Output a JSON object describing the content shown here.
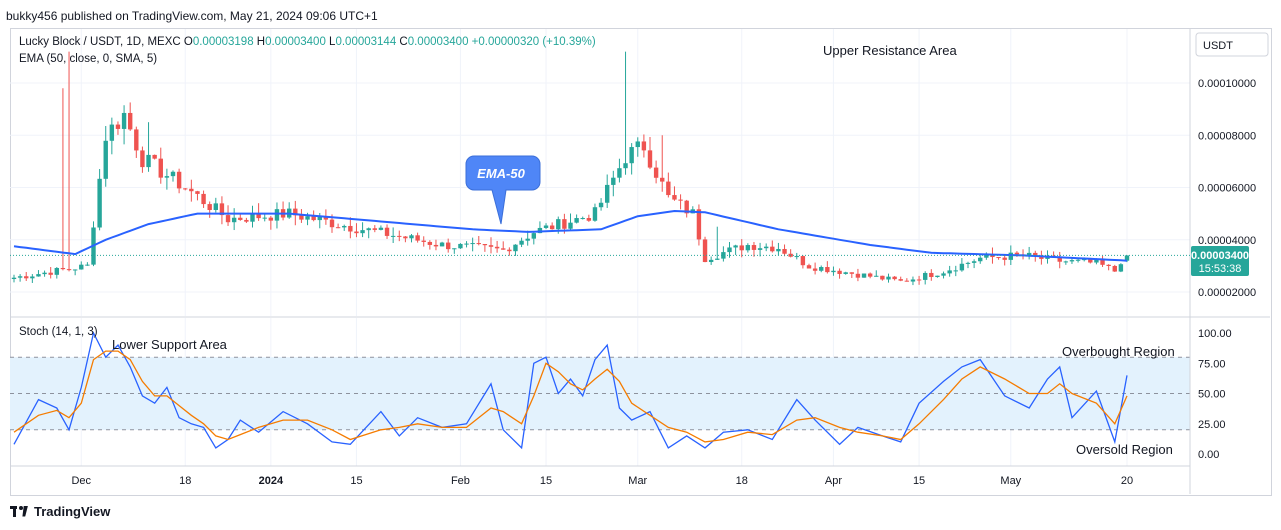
{
  "header": {
    "publisher": "bukky456 published on TradingView.com, May 21, 2024 09:06 UTC+1"
  },
  "footer": {
    "brand": "TradingView"
  },
  "legend": {
    "symbol": "Lucky Block / USDT, 1D, MEXC",
    "ohlc": [
      {
        "label": "O",
        "value": "0.00003198"
      },
      {
        "label": "H",
        "value": "0.00003400"
      },
      {
        "label": "L",
        "value": "0.00003144"
      },
      {
        "label": "C",
        "value": "0.00003400"
      }
    ],
    "change": "+0.00000320 (+10.39%)",
    "ema_label": "EMA (50, close, 0, SMA, 5)",
    "stoch_label": "Stoch (14, 1, 3)"
  },
  "currency_button": "USDT",
  "price_tag": {
    "price": "0.00003400",
    "countdown": "15:53:38"
  },
  "annotations": {
    "upper_resistance": "Upper Resistance Area",
    "lower_support": "Lower Support Area",
    "ema_callout": "EMA-50",
    "overbought": "Overbought Region",
    "oversold": "Oversold Region"
  },
  "colors": {
    "up": "#26a69a",
    "down": "#ef5350",
    "ema": "#2962ff",
    "stoch_k": "#2962ff",
    "stoch_d": "#f57c00",
    "band": "#e3f2fd",
    "callout": "#4f86f7"
  },
  "chart_data": [
    {
      "type": "candlestick",
      "title": "Lucky Block / USDT, 1D, MEXC",
      "y_ticks": [
        "0.00010000",
        "0.00008000",
        "0.00006000",
        "0.00004000",
        "0.00002000"
      ],
      "ylim": [
        1e-05,
        0.00011
      ],
      "x_tick_labels": [
        "Dec",
        "18",
        "2024",
        "15",
        "Feb",
        "15",
        "Mar",
        "18",
        "Apr",
        "15",
        "May",
        "20"
      ],
      "x_ticks_day_index": [
        11,
        28,
        42,
        56,
        73,
        87,
        102,
        119,
        134,
        148,
        163,
        182
      ],
      "last_close": 3.4e-05,
      "key_closes": [
        [
          0,
          2.55e-05
        ],
        [
          12,
          3e-05
        ],
        [
          15,
          8e-05
        ],
        [
          18,
          8.8e-05
        ],
        [
          21,
          7.1e-05
        ],
        [
          28,
          6e-05
        ],
        [
          35,
          4.8e-05
        ],
        [
          45,
          5e-05
        ],
        [
          55,
          4.5e-05
        ],
        [
          70,
          3.8e-05
        ],
        [
          80,
          3.6e-05
        ],
        [
          85,
          4.3e-05
        ],
        [
          95,
          5e-05
        ],
        [
          100,
          7.2e-05
        ],
        [
          103,
          7.6e-05
        ],
        [
          107,
          5.6e-05
        ],
        [
          111,
          5e-05
        ],
        [
          113,
          3.3e-05
        ],
        [
          120,
          3.8e-05
        ],
        [
          125,
          3.7e-05
        ],
        [
          130,
          3e-05
        ],
        [
          140,
          2.6e-05
        ],
        [
          145,
          2.4e-05
        ],
        [
          152,
          2.8e-05
        ],
        [
          158,
          3.3e-05
        ],
        [
          165,
          3.4e-05
        ],
        [
          170,
          3.2e-05
        ],
        [
          177,
          3.1e-05
        ],
        [
          180,
          2.8e-05
        ],
        [
          181,
          3.2e-05
        ],
        [
          182,
          3.4e-05
        ]
      ],
      "ema50": [
        [
          0,
          3.75e-05
        ],
        [
          10,
          3.45e-05
        ],
        [
          15,
          4e-05
        ],
        [
          22,
          4.6e-05
        ],
        [
          30,
          5e-05
        ],
        [
          45,
          5e-05
        ],
        [
          60,
          4.7e-05
        ],
        [
          75,
          4.4e-05
        ],
        [
          84,
          4.3e-05
        ],
        [
          96,
          4.4e-05
        ],
        [
          102,
          4.9e-05
        ],
        [
          108,
          5.1e-05
        ],
        [
          113,
          5.05e-05
        ],
        [
          125,
          4.4e-05
        ],
        [
          140,
          3.8e-05
        ],
        [
          150,
          3.5e-05
        ],
        [
          165,
          3.4e-05
        ],
        [
          182,
          3.2e-05
        ]
      ]
    },
    {
      "type": "line",
      "title": "Stoch (14, 1, 3)",
      "y_ticks": [
        "100.00",
        "75.00",
        "50.00",
        "25.00",
        "0.00"
      ],
      "ylim": [
        0,
        100
      ],
      "overbought": 80,
      "oversold": 20,
      "series": [
        {
          "name": "%K",
          "points": [
            [
              0,
              8
            ],
            [
              4,
              45
            ],
            [
              7,
              38
            ],
            [
              9,
              20
            ],
            [
              11,
              55
            ],
            [
              13,
              100
            ],
            [
              15,
              80
            ],
            [
              17,
              90
            ],
            [
              19,
              72
            ],
            [
              21,
              48
            ],
            [
              23,
              42
            ],
            [
              25,
              55
            ],
            [
              27,
              30
            ],
            [
              29,
              25
            ],
            [
              31,
              22
            ],
            [
              33,
              5
            ],
            [
              35,
              12
            ],
            [
              37,
              28
            ],
            [
              40,
              18
            ],
            [
              44,
              35
            ],
            [
              48,
              25
            ],
            [
              52,
              10
            ],
            [
              55,
              8
            ],
            [
              60,
              35
            ],
            [
              63,
              15
            ],
            [
              66,
              30
            ],
            [
              70,
              22
            ],
            [
              74,
              25
            ],
            [
              78,
              58
            ],
            [
              80,
              20
            ],
            [
              83,
              5
            ],
            [
              85,
              75
            ],
            [
              87,
              80
            ],
            [
              89,
              50
            ],
            [
              91,
              62
            ],
            [
              93,
              48
            ],
            [
              95,
              78
            ],
            [
              97,
              90
            ],
            [
              99,
              38
            ],
            [
              101,
              28
            ],
            [
              104,
              35
            ],
            [
              107,
              5
            ],
            [
              110,
              15
            ],
            [
              113,
              5
            ],
            [
              116,
              18
            ],
            [
              120,
              20
            ],
            [
              124,
              12
            ],
            [
              128,
              45
            ],
            [
              131,
              28
            ],
            [
              135,
              8
            ],
            [
              138,
              22
            ],
            [
              142,
              15
            ],
            [
              145,
              10
            ],
            [
              148,
              42
            ],
            [
              152,
              60
            ],
            [
              155,
              72
            ],
            [
              158,
              78
            ],
            [
              162,
              48
            ],
            [
              166,
              38
            ],
            [
              169,
              62
            ],
            [
              171,
              72
            ],
            [
              173,
              30
            ],
            [
              177,
              52
            ],
            [
              180,
              10
            ],
            [
              182,
              65
            ]
          ]
        },
        {
          "name": "%D",
          "points": [
            [
              0,
              18
            ],
            [
              4,
              32
            ],
            [
              7,
              36
            ],
            [
              9,
              30
            ],
            [
              11,
              42
            ],
            [
              13,
              78
            ],
            [
              15,
              85
            ],
            [
              17,
              85
            ],
            [
              19,
              78
            ],
            [
              21,
              60
            ],
            [
              23,
              48
            ],
            [
              25,
              48
            ],
            [
              27,
              40
            ],
            [
              29,
              32
            ],
            [
              31,
              25
            ],
            [
              33,
              15
            ],
            [
              35,
              12
            ],
            [
              37,
              16
            ],
            [
              40,
              22
            ],
            [
              44,
              28
            ],
            [
              48,
              28
            ],
            [
              52,
              20
            ],
            [
              55,
              12
            ],
            [
              60,
              20
            ],
            [
              63,
              22
            ],
            [
              66,
              25
            ],
            [
              70,
              22
            ],
            [
              74,
              22
            ],
            [
              78,
              38
            ],
            [
              80,
              35
            ],
            [
              83,
              25
            ],
            [
              85,
              48
            ],
            [
              87,
              75
            ],
            [
              89,
              68
            ],
            [
              91,
              58
            ],
            [
              93,
              53
            ],
            [
              95,
              62
            ],
            [
              97,
              70
            ],
            [
              99,
              60
            ],
            [
              101,
              42
            ],
            [
              104,
              32
            ],
            [
              107,
              22
            ],
            [
              110,
              18
            ],
            [
              113,
              10
            ],
            [
              116,
              12
            ],
            [
              120,
              18
            ],
            [
              124,
              16
            ],
            [
              128,
              28
            ],
            [
              131,
              30
            ],
            [
              135,
              22
            ],
            [
              138,
              18
            ],
            [
              142,
              15
            ],
            [
              145,
              12
            ],
            [
              148,
              25
            ],
            [
              152,
              45
            ],
            [
              155,
              62
            ],
            [
              158,
              72
            ],
            [
              162,
              62
            ],
            [
              166,
              50
            ],
            [
              169,
              50
            ],
            [
              171,
              58
            ],
            [
              173,
              50
            ],
            [
              177,
              42
            ],
            [
              180,
              25
            ],
            [
              182,
              48
            ]
          ]
        }
      ]
    }
  ]
}
